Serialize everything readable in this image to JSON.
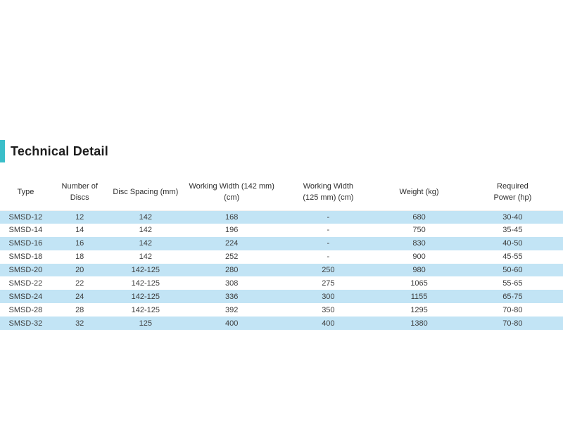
{
  "heading": {
    "title": "Technical Detail",
    "accent_color": "#3abec9"
  },
  "table": {
    "zebra_color": "#c2e4f5",
    "columns": [
      "Type",
      "Number of\nDiscs",
      "Disc Spacing (mm)",
      "Working Width (142 mm)\n(cm)",
      "Working Width\n(125 mm) (cm)",
      "Weight (kg)",
      "Required\nPower (hp)"
    ],
    "rows": [
      [
        "SMSD-12",
        "12",
        "142",
        "168",
        "-",
        "680",
        "30-40"
      ],
      [
        "SMSD-14",
        "14",
        "142",
        "196",
        "-",
        "750",
        "35-45"
      ],
      [
        "SMSD-16",
        "16",
        "142",
        "224",
        "-",
        "830",
        "40-50"
      ],
      [
        "SMSD-18",
        "18",
        "142",
        "252",
        "-",
        "900",
        "45-55"
      ],
      [
        "SMSD-20",
        "20",
        "142-125",
        "280",
        "250",
        "980",
        "50-60"
      ],
      [
        "SMSD-22",
        "22",
        "142-125",
        "308",
        "275",
        "1065",
        "55-65"
      ],
      [
        "SMSD-24",
        "24",
        "142-125",
        "336",
        "300",
        "1155",
        "65-75"
      ],
      [
        "SMSD-28",
        "28",
        "142-125",
        "392",
        "350",
        "1295",
        "70-80"
      ],
      [
        "SMSD-32",
        "32",
        "125",
        "400",
        "400",
        "1380",
        "70-80"
      ]
    ]
  }
}
